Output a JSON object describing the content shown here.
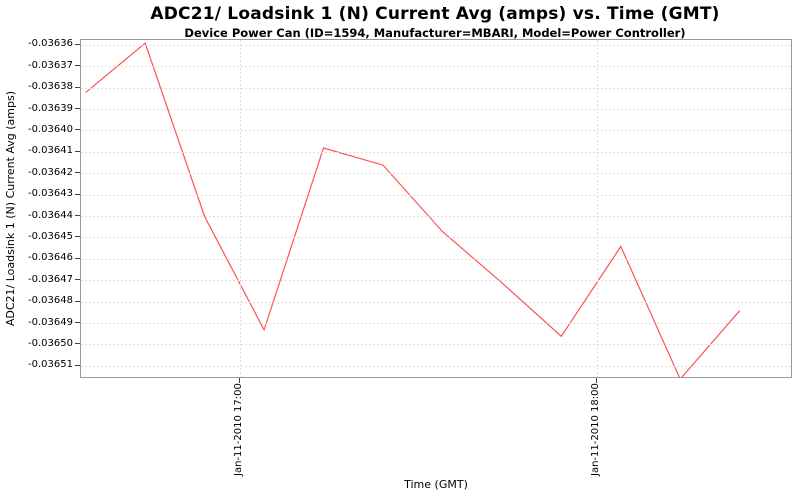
{
  "chart": {
    "title": "ADC21/ Loadsink 1 (N) Current Avg (amps) vs. Time (GMT)",
    "subtitle": "Device Power Can (ID=1594, Manufacturer=MBARI, Model=Power Controller)",
    "xlabel": "Time (GMT)",
    "ylabel": "ADC21/ Loadsink 1 (N) Current Avg (amps)"
  },
  "chart_data": {
    "type": "line",
    "title": "ADC21/ Loadsink 1 (N) Current Avg (amps) vs. Time (GMT)",
    "subtitle": "Device Power Can (ID=1594, Manufacturer=MBARI, Model=Power Controller)",
    "xlabel": "Time (GMT)",
    "ylabel": "ADC21/ Loadsink 1 (N) Current Avg (amps)",
    "legend": "none",
    "grid": "dotted",
    "ylim": [
      -0.036516,
      -0.0363575
    ],
    "y_ticks": [
      "-0.03636",
      "-0.03637",
      "-0.03638",
      "-0.03639",
      "-0.03640",
      "-0.03641",
      "-0.03642",
      "-0.03643",
      "-0.03644",
      "-0.03645",
      "-0.03646",
      "-0.03647",
      "-0.03648",
      "-0.03649",
      "-0.03650",
      "-0.03651"
    ],
    "x_ticks": [
      {
        "label": "Jan-11-2010 17:00",
        "time": "17:00"
      },
      {
        "label": "Jan-11-2010 18:00",
        "time": "18:00"
      }
    ],
    "series": [
      {
        "name": "ADC21/ Loadsink 1 (N) Current Avg (amps)",
        "color": "#ff5252",
        "x": [
          "16:34",
          "16:44",
          "16:54",
          "17:04",
          "17:14",
          "17:24",
          "17:34",
          "17:44",
          "17:54",
          "18:04",
          "18:14",
          "18:24"
        ],
        "y": [
          -0.036382,
          -0.036359,
          -0.03644,
          -0.036493,
          -0.036408,
          -0.036416,
          -0.036447,
          -0.036471,
          -0.036496,
          -0.036454,
          -0.036516,
          -0.036484
        ]
      }
    ],
    "colors": {
      "line": "#ff5252",
      "grid": "#dedede",
      "plot_border": "#9a9a9a",
      "tick": "#444444",
      "text": "#000000",
      "background": "#ffffff"
    }
  }
}
